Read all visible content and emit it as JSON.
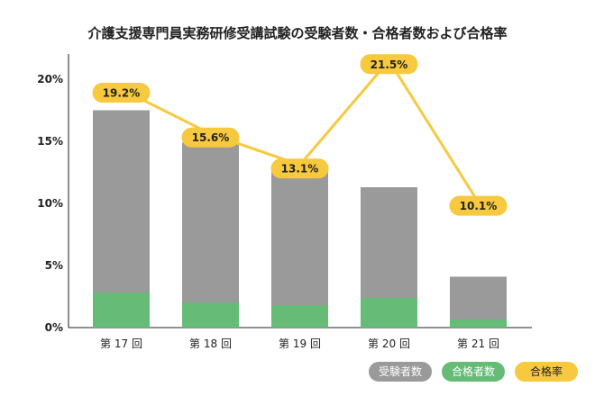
{
  "chart_data": {
    "type": "bar",
    "title": "介護支援専門員実務研修受講試験の受験者数・合格者数および合格率",
    "categories": [
      "第 17 回",
      "第 18 回",
      "第 19 回",
      "第 20 回",
      "第 21 回"
    ],
    "ylim": [
      0,
      20
    ],
    "yticks": [
      0,
      5,
      10,
      15,
      20
    ],
    "ytick_labels": [
      "0%",
      "5%",
      "10%",
      "15%",
      "20%"
    ],
    "grid": false,
    "legend_placement": "bottom-right",
    "series": [
      {
        "name": "受験者数",
        "type": "bar",
        "color": "#9a9a9a",
        "values": [
          17.5,
          14.9,
          13.1,
          11.3,
          4.1
        ]
      },
      {
        "name": "合格者数",
        "type": "bar",
        "color": "#66bb77",
        "values": [
          2.8,
          2.0,
          1.8,
          2.4,
          0.65
        ]
      },
      {
        "name": "合格率",
        "type": "line",
        "color": "#f7c93e",
        "values": [
          19.2,
          15.6,
          13.1,
          21.5,
          10.1
        ],
        "labels": [
          "19.2%",
          "15.6%",
          "13.1%",
          "21.5%",
          "10.1%"
        ]
      }
    ]
  }
}
